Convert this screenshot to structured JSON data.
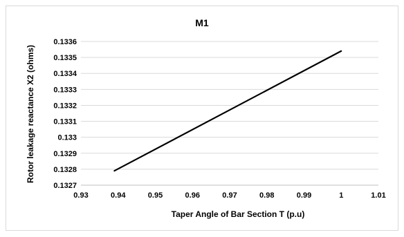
{
  "chart_data": {
    "type": "line",
    "title": "M1",
    "xlabel": "Taper Angle of Bar Section T (p.u)",
    "ylabel": "Rotor leakage reactance X2 (ohms)",
    "xlim": [
      0.93,
      1.01
    ],
    "ylim": [
      0.1327,
      0.1336
    ],
    "x_ticks": [
      "0.93",
      "0.94",
      "0.95",
      "0.96",
      "0.97",
      "0.98",
      "0.99",
      "1",
      "1.01"
    ],
    "y_ticks": [
      "0.1327",
      "0.1328",
      "0.1329",
      "0.133",
      "0.1331",
      "0.1332",
      "0.1333",
      "0.1334",
      "0.1335",
      "0.1336"
    ],
    "grid": true,
    "legend": false,
    "series": [
      {
        "x": [
          0.939,
          1.0
        ],
        "y": [
          0.13279,
          0.13354
        ],
        "color": "#000000"
      }
    ]
  }
}
